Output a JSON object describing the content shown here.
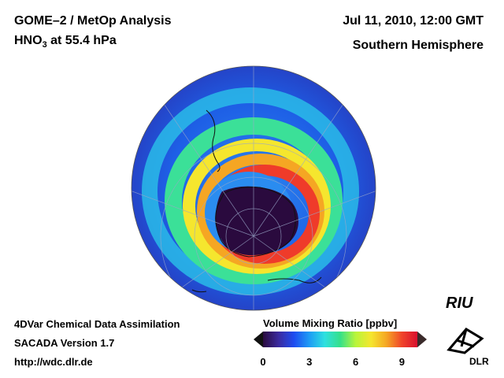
{
  "title": {
    "line1": "GOME–2 / MetOp Analysis",
    "species_main": "HNO",
    "species_sub": "3",
    "level": " at 55.4 hPa"
  },
  "date": "Jul 11, 2010, 12:00 GMT",
  "region": "Southern Hemisphere",
  "footer": {
    "method": "4DVar Chemical Data Assimilation",
    "version": "SACADA Version 1.7",
    "url": "http://wdc.dlr.de"
  },
  "colorbar": {
    "title": "Volume Mixing Ratio [ppbv]",
    "min": 0,
    "max": 10,
    "ticks": [
      "0",
      "3",
      "6",
      "9"
    ],
    "tick_values": [
      0,
      3,
      6,
      9
    ],
    "colors": [
      "#2a0a3e",
      "#3b2a9e",
      "#1e4cf0",
      "#1e9cf5",
      "#2ee0e0",
      "#34e08a",
      "#b8f53a",
      "#f5e62e",
      "#f5a623",
      "#f0442a",
      "#d8102e"
    ]
  },
  "logos": {
    "riu": "RIU",
    "dlr": "DLR"
  },
  "colors": {
    "vortex_core": "#2a0a3e",
    "ring_high": "#f0442a",
    "background_field": "#1f6fe8"
  }
}
